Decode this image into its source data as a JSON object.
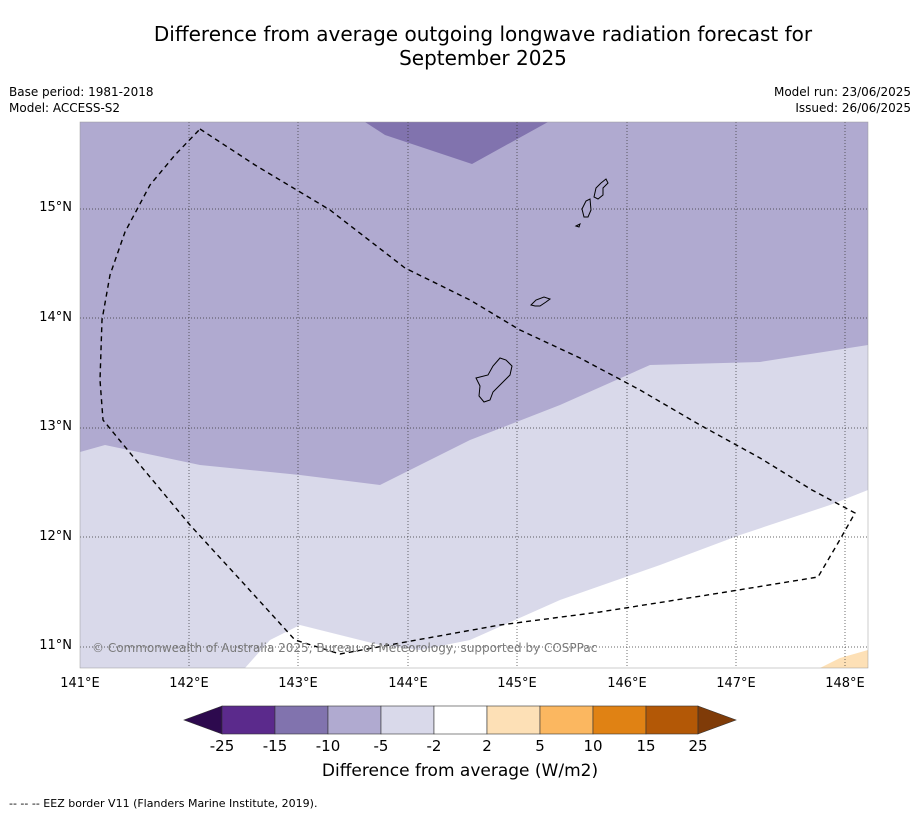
{
  "title_line1": "Difference from average outgoing longwave radiation forecast for",
  "title_line2": "September 2025",
  "meta_left": {
    "base_period": "Base period: 1981-2018",
    "model": "Model: ACCESS-S2"
  },
  "meta_right": {
    "model_run": "Model run: 23/06/2025",
    "issued": "Issued: 26/06/2025"
  },
  "map": {
    "lat_labels": [
      "15°N",
      "14°N",
      "13°N",
      "12°N",
      "11°N"
    ],
    "lon_labels": [
      "141°E",
      "142°E",
      "143°E",
      "144°E",
      "145°E",
      "146°E",
      "147°E",
      "148°E"
    ],
    "copyright": "© Commonwealth of Australia 2025, Bureau of Meteorology, supported by COSPPac"
  },
  "colorbar": {
    "title": "Difference from average (W/m2)",
    "tick_labels": [
      "-25",
      "-15",
      "-10",
      "-5",
      "-2",
      "2",
      "5",
      "10",
      "15",
      "25"
    ],
    "colors": {
      "below_min": "#2d0a4e",
      "bins": [
        "#5b2a8c",
        "#8173ae",
        "#b0aad0",
        "#d9d9ea",
        "#ffffff",
        "#fde0b6",
        "#fbb760",
        "#e08214",
        "#b35806"
      ],
      "above_max": "#7f3b08"
    }
  },
  "footer": "--  --  -- EEZ border V11 (Flanders Marine Institute, 2019)."
}
